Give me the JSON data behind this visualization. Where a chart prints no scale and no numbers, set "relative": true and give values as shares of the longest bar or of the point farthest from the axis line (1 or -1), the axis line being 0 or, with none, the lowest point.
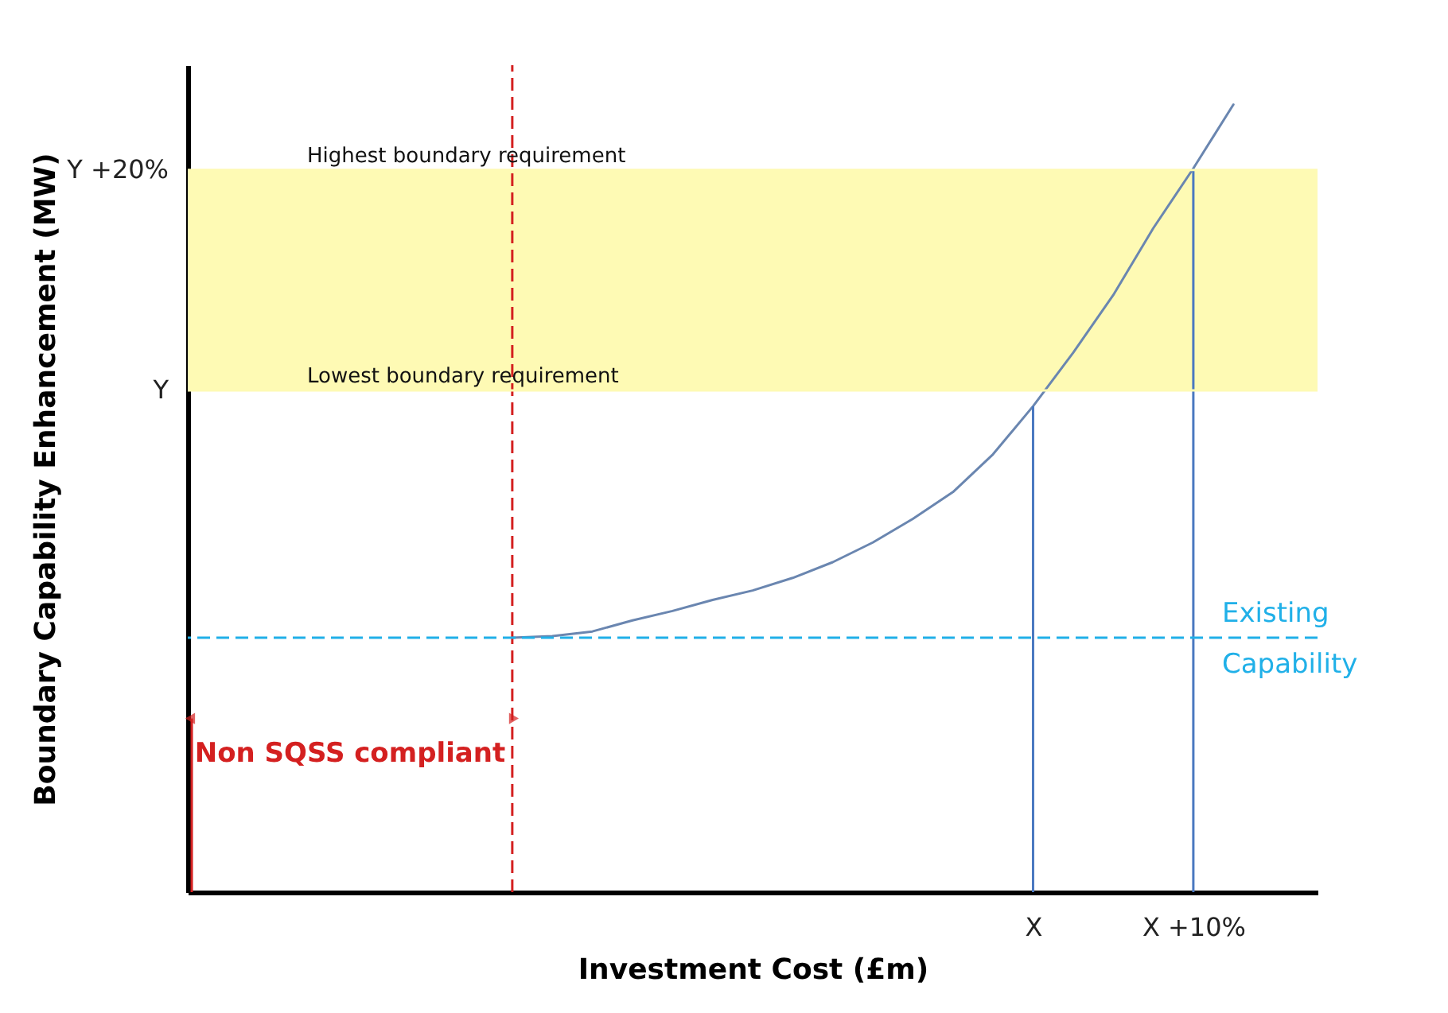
{
  "chart_data": {
    "type": "line",
    "relative": true,
    "xlabel": "Investment Cost (£m)",
    "ylabel": "Boundary Capability Enhancement (MW)",
    "categories": [
      null,
      null,
      null,
      null,
      null,
      null,
      null,
      null,
      null,
      null,
      null,
      null,
      null,
      null,
      null,
      null,
      null,
      null,
      null,
      null,
      null,
      "X",
      null,
      null,
      null,
      "X +10%",
      null,
      null,
      null
    ],
    "grid": false,
    "marker": "none",
    "line_style": "solid",
    "series": [
      {
        "color": "#6a86b0",
        "values": [
          null,
          null,
          null,
          null,
          null,
          null,
          null,
          null,
          0.323,
          0.325,
          0.331,
          0.345,
          0.357,
          0.371,
          0.383,
          0.399,
          0.419,
          0.444,
          0.474,
          0.508,
          0.556,
          0.617,
          0.685,
          0.758,
          0.843,
          0.919,
          1,
          null,
          null
        ]
      }
    ],
    "bands": [
      {
        "axis": "y",
        "from": 0.637,
        "to": 0.917,
        "color": "#fefab4"
      }
    ],
    "ref_lines": [
      {
        "axis": "y",
        "value": 0.323,
        "label": "Existing Capability",
        "color": "#20b0e8",
        "line_style": "dashed"
      },
      {
        "axis": "y",
        "value": 0.917,
        "label": "Highest boundary requirement",
        "color": "#fefab4",
        "line_style": "solid"
      },
      {
        "axis": "y",
        "value": 0.637,
        "label": "Lowest boundary requirement",
        "color": "#fefab4",
        "line_style": "solid"
      }
    ],
    "annotations": [
      "Y +20%",
      "Y",
      "Non SQSS compliant"
    ]
  }
}
